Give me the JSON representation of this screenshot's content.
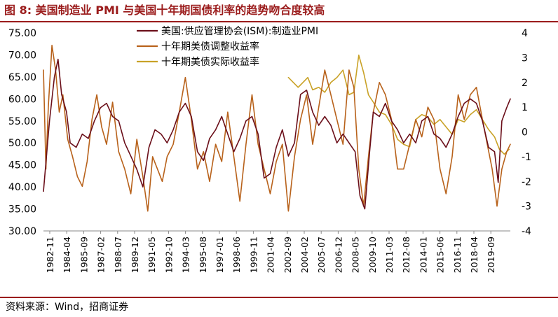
{
  "header": {
    "title": "图 8:  美国制造业 PMI 与美国十年期国债利率的趋势吻合度较高"
  },
  "footer": {
    "source": "资料来源：Wind，招商证券"
  },
  "chart_data": {
    "type": "line",
    "title": "美国制造业 PMI 与美国十年期国债利率的趋势吻合度较高",
    "xlabel": "",
    "ylabel_left": "",
    "ylabel_right": "",
    "ylim_left": [
      30,
      75
    ],
    "ylim_right": [
      -4,
      4
    ],
    "yticks_left": [
      "75.00",
      "70.00",
      "65.00",
      "60.00",
      "55.00",
      "50.00",
      "45.00",
      "40.00",
      "35.00",
      "30.00"
    ],
    "yticks_right": [
      "4",
      "3",
      "2",
      "1",
      "0",
      "-1",
      "-2",
      "-3",
      "-4"
    ],
    "x_ticks": [
      "1982-11",
      "1984-04",
      "1985-09",
      "1987-02",
      "1988-07",
      "1989-12",
      "1991-05",
      "1992-10",
      "1994-03",
      "1995-08",
      "1997-01",
      "1998-06",
      "1999-11",
      "2001-04",
      "2002-09",
      "2004-02",
      "2005-07",
      "2006-12",
      "2008-05",
      "2009-10",
      "2011-03",
      "2012-08",
      "2014-01",
      "2015-06",
      "2016-11",
      "2018-04",
      "2019-09"
    ],
    "legend_position": "top-center",
    "colors": {
      "pmi": "#6b0f1a",
      "adj": "#b8621b",
      "real": "#c9a227"
    },
    "series": [
      {
        "name": "美国:供应管理协会(ISM):制造业PMI",
        "axis": "left",
        "x": [
          1982.8,
          1983.3,
          1983.7,
          1984.0,
          1984.3,
          1984.7,
          1985.0,
          1985.5,
          1986.0,
          1986.5,
          1987.0,
          1987.5,
          1988.0,
          1988.5,
          1989.0,
          1989.5,
          1990.0,
          1990.5,
          1991.0,
          1991.5,
          1992.0,
          1992.5,
          1993.0,
          1993.5,
          1994.0,
          1994.5,
          1995.0,
          1995.5,
          1996.0,
          1996.5,
          1997.0,
          1997.5,
          1998.0,
          1998.5,
          1999.0,
          1999.5,
          2000.0,
          2000.5,
          2001.0,
          2001.5,
          2002.0,
          2002.5,
          2003.0,
          2003.5,
          2004.0,
          2004.5,
          2005.0,
          2005.5,
          2006.0,
          2006.5,
          2007.0,
          2007.5,
          2008.0,
          2008.5,
          2008.9,
          2009.3,
          2009.7,
          2010.0,
          2010.5,
          2011.0,
          2011.5,
          2012.0,
          2012.5,
          2013.0,
          2013.5,
          2014.0,
          2014.5,
          2015.0,
          2015.5,
          2016.0,
          2016.5,
          2017.0,
          2017.5,
          2018.0,
          2018.5,
          2019.0,
          2019.5,
          2020.0,
          2020.3,
          2020.6,
          2021.0,
          2021.3
        ],
        "values": [
          39,
          55,
          65,
          69,
          61,
          57,
          50,
          49,
          52,
          51,
          55,
          58,
          59,
          56,
          55,
          50,
          47,
          44,
          40,
          49,
          53,
          52,
          50,
          53,
          57,
          59,
          56,
          48,
          46,
          51,
          53,
          56,
          52,
          48,
          51,
          55,
          56,
          52,
          42,
          43,
          49,
          53,
          47,
          50,
          61,
          62,
          57,
          54,
          56,
          54,
          50,
          52,
          50,
          48,
          38,
          35,
          48,
          57,
          56,
          59,
          55,
          53,
          50,
          52,
          50,
          55,
          56,
          52,
          51,
          49,
          52,
          56,
          59,
          60,
          59,
          55,
          49,
          48,
          41,
          55,
          58,
          60
        ]
      },
      {
        "name": "十年期美债调整收益率",
        "axis": "right",
        "x": [
          1982.8,
          1983.0,
          1983.2,
          1983.5,
          1983.8,
          1984.1,
          1984.4,
          1984.8,
          1985.2,
          1985.6,
          1986.0,
          1986.4,
          1986.8,
          1987.2,
          1987.6,
          1988.0,
          1988.5,
          1989.0,
          1989.5,
          1990.0,
          1990.5,
          1991.0,
          1991.4,
          1991.8,
          1992.2,
          1992.6,
          1993.0,
          1993.5,
          1994.0,
          1994.5,
          1995.0,
          1995.5,
          1996.0,
          1996.5,
          1997.0,
          1997.5,
          1998.0,
          1998.5,
          1999.0,
          1999.5,
          2000.0,
          2000.5,
          2001.0,
          2001.5,
          2002.0,
          2002.5,
          2003.0,
          2003.5,
          2004.0,
          2004.5,
          2005.0,
          2005.5,
          2006.0,
          2006.5,
          2007.0,
          2007.5,
          2008.0,
          2008.4,
          2008.8,
          2009.2,
          2009.6,
          2010.0,
          2010.5,
          2011.0,
          2011.5,
          2012.0,
          2012.5,
          2013.0,
          2013.5,
          2014.0,
          2014.5,
          2015.0,
          2015.5,
          2016.0,
          2016.5,
          2017.0,
          2017.5,
          2018.0,
          2018.5,
          2019.0,
          2019.4,
          2019.8,
          2020.2,
          2020.6,
          2021.0,
          2021.3
        ],
        "values": [
          2.5,
          -1.5,
          1.0,
          3.5,
          2.5,
          0.8,
          1.5,
          -0.3,
          -1.0,
          -1.8,
          -2.2,
          -1.2,
          0.5,
          1.5,
          0.2,
          -0.5,
          1.2,
          -0.8,
          -1.5,
          -2.5,
          -0.3,
          -1.8,
          -3.2,
          -1.0,
          -1.5,
          -2.0,
          -1.0,
          -0.5,
          0.8,
          2.2,
          0.5,
          -1.5,
          -0.8,
          -2.0,
          -0.5,
          -1.2,
          0.8,
          -1.0,
          -2.8,
          -0.5,
          1.5,
          -0.5,
          -1.5,
          -2.5,
          -1.2,
          -0.5,
          -3.2,
          -1.0,
          0.5,
          1.5,
          -0.5,
          1.0,
          2.5,
          1.5,
          0.5,
          -0.5,
          2.5,
          1.8,
          -1.5,
          -3.0,
          -1.0,
          0.8,
          2.0,
          1.5,
          0.5,
          -1.5,
          -1.5,
          -0.5,
          0.5,
          -0.2,
          1.0,
          0.5,
          -1.5,
          -2.5,
          -1.0,
          1.5,
          0.5,
          1.5,
          1.8,
          0.5,
          -0.5,
          -1.5,
          -3.0,
          -1.5,
          -0.8,
          -0.5
        ]
      },
      {
        "name": "十年期美债实际收益率",
        "axis": "right",
        "x": [
          2003.0,
          2003.4,
          2003.8,
          2004.2,
          2004.6,
          2005.0,
          2005.5,
          2006.0,
          2006.5,
          2007.0,
          2007.5,
          2008.0,
          2008.4,
          2008.8,
          2009.2,
          2009.6,
          2010.0,
          2010.5,
          2011.0,
          2011.5,
          2012.0,
          2012.5,
          2013.0,
          2013.5,
          2014.0,
          2014.5,
          2015.0,
          2015.5,
          2016.0,
          2016.5,
          2017.0,
          2017.5,
          2018.0,
          2018.5,
          2019.0,
          2019.5,
          2020.0,
          2020.4,
          2020.8,
          2021.2
        ],
        "values": [
          2.2,
          2.0,
          1.8,
          2.0,
          2.2,
          1.7,
          1.8,
          1.6,
          2.0,
          2.2,
          2.5,
          1.5,
          1.6,
          3.1,
          2.4,
          1.5,
          1.2,
          0.8,
          0.7,
          0.3,
          -0.3,
          -0.5,
          -0.6,
          0.5,
          0.7,
          0.6,
          0.3,
          0.5,
          0.2,
          -0.1,
          0.5,
          0.4,
          0.7,
          0.9,
          0.5,
          0.1,
          -0.2,
          -0.7,
          -0.9,
          -0.7
        ]
      }
    ]
  }
}
